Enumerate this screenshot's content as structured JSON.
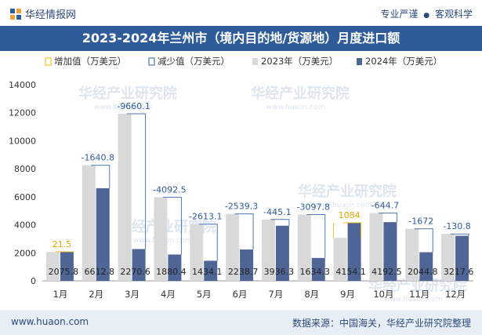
{
  "header": {
    "brand": "华经情报网",
    "slogan_left": "专业严谨",
    "slogan_right": "客观科学",
    "bullet": "●"
  },
  "title": "2023-2024年兰州市（境内目的地/货源地）月度进口额",
  "watermark": "华经产业研究院",
  "watermark_url": "www.huaon.com",
  "footer": {
    "website": "www.huaon.com",
    "source": "数据来源：中国海关，华经产业研究院整理"
  },
  "colors": {
    "bar2023": "#d9d9d9",
    "bar2024": "#4f6596",
    "increase": "#f2c230",
    "decrease": "#4a7ab0",
    "title_bg": "#2e5c9a"
  },
  "chart_data": {
    "type": "bar",
    "categories": [
      "1月",
      "2月",
      "3月",
      "4月",
      "5月",
      "6月",
      "7月",
      "8月",
      "9月",
      "10月",
      "11月",
      "12月"
    ],
    "series": [
      {
        "name": "2023年（万美元）",
        "values": [
          2054.3,
          8253.6,
          11930.7,
          5973.0,
          4047.2,
          4778.0,
          4381.4,
          4732.1,
          3070.0,
          4837.2,
          3716.8,
          3348.4
        ]
      },
      {
        "name": "2024年（万美元）",
        "values": [
          2075.8,
          6612.8,
          2270.6,
          1880.4,
          1434.1,
          2238.7,
          3936.3,
          1634.3,
          4154.1,
          4192.5,
          2044.8,
          3217.6
        ]
      }
    ],
    "legend": [
      "增加值（万美元）",
      "减少值（万美元）",
      "2023年（万美元）",
      "2024年（万美元）"
    ],
    "diff_labels": [
      "21.5",
      "-1640.8",
      "-9660.1",
      "-4092.5",
      "-2613.1",
      "-2539.3",
      "-445.1",
      "-3097.8",
      "1084",
      "-644.7",
      "-1672",
      "-130.8"
    ],
    "value_labels_2024": [
      "2075.8",
      "6612.8",
      "2270.6",
      "1880.4",
      "1434.1",
      "2238.7",
      "3936.3",
      "1634.3",
      "4154.1",
      "4192.5",
      "2044.8",
      "3217.6"
    ],
    "y_ticks": [
      "0",
      "2000",
      "4000",
      "6000",
      "8000",
      "10000",
      "12000",
      "14000"
    ],
    "ylim": [
      0,
      14000
    ],
    "legend_position": "top"
  }
}
